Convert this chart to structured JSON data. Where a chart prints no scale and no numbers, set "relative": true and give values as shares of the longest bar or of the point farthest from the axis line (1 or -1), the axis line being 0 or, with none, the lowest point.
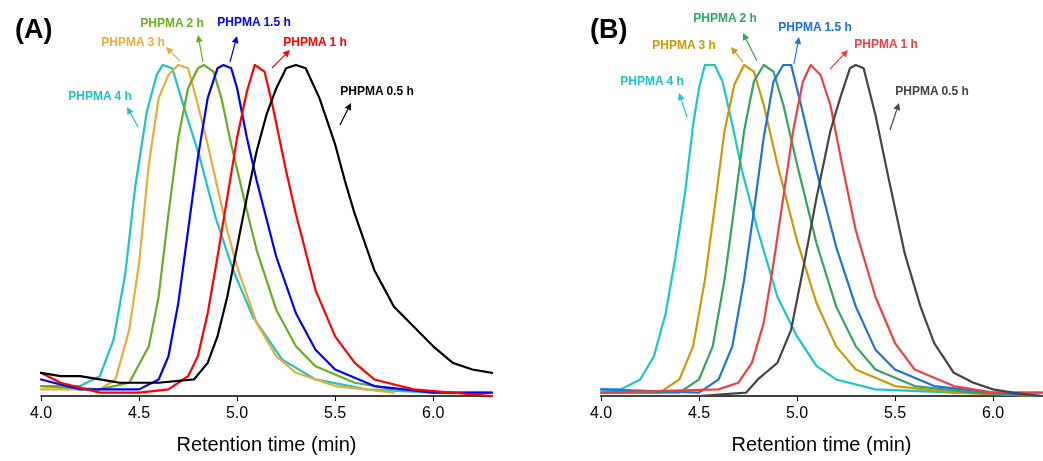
{
  "chart_data": [
    {
      "type": "line",
      "title": "(A)",
      "xlabel": "Retention time (min)",
      "relative": true,
      "marker": "none",
      "xlim": [
        4.0,
        6.3
      ],
      "xticks": [
        {
          "value": 4,
          "label": "4.0"
        },
        {
          "value": 4.5,
          "label": "4.5"
        },
        {
          "value": 5,
          "label": "5.0"
        },
        {
          "value": 5.5,
          "label": "5.5"
        },
        {
          "value": 6,
          "label": "6.0"
        }
      ],
      "series": [
        {
          "name": "PHPMA 4 h",
          "color": "#1ec4c4",
          "x": [
            4.0,
            4.1,
            4.2,
            4.3,
            4.37,
            4.43,
            4.48,
            4.54,
            4.59,
            4.62,
            4.67,
            4.72,
            4.81,
            4.89,
            4.98,
            5.08,
            5.23,
            5.4,
            5.66,
            6.0,
            6.3
          ],
          "values": [
            0.03,
            0.03,
            0.03,
            0.06,
            0.17,
            0.37,
            0.63,
            0.86,
            0.97,
            1.0,
            0.99,
            0.89,
            0.72,
            0.54,
            0.38,
            0.24,
            0.11,
            0.05,
            0.02,
            0.01,
            0.01
          ]
        },
        {
          "name": "PHPMA 3 h",
          "color": "#e8ad35",
          "x": [
            4.0,
            4.15,
            4.3,
            4.38,
            4.45,
            4.5,
            4.55,
            4.6,
            4.65,
            4.7,
            4.75,
            4.8,
            4.85,
            4.9,
            4.95,
            5.0,
            5.1,
            5.2,
            5.3,
            5.5,
            5.8
          ],
          "values": [
            0.02,
            0.02,
            0.02,
            0.05,
            0.2,
            0.4,
            0.7,
            0.9,
            0.97,
            1.0,
            0.99,
            0.88,
            0.76,
            0.63,
            0.5,
            0.39,
            0.22,
            0.12,
            0.07,
            0.03,
            0.01
          ]
        },
        {
          "name": "PHPMA 2 h",
          "color": "#6aab1f",
          "x": [
            4.0,
            4.3,
            4.45,
            4.55,
            4.6,
            4.65,
            4.7,
            4.75,
            4.8,
            4.83,
            4.88,
            4.92,
            4.97,
            5.05,
            5.1,
            5.2,
            5.3,
            5.4,
            5.6,
            5.8
          ],
          "values": [
            0.03,
            0.02,
            0.04,
            0.15,
            0.3,
            0.55,
            0.78,
            0.93,
            0.99,
            1.0,
            0.98,
            0.9,
            0.76,
            0.56,
            0.44,
            0.26,
            0.15,
            0.09,
            0.04,
            0.02
          ]
        },
        {
          "name": "PHPMA 1.5 h",
          "color": "#0000ff",
          "x": [
            4.0,
            4.2,
            4.5,
            4.6,
            4.65,
            4.7,
            4.75,
            4.8,
            4.85,
            4.9,
            4.93,
            4.97,
            5.0,
            5.05,
            5.1,
            5.2,
            5.3,
            5.4,
            5.5,
            5.7,
            6.0,
            6.3
          ],
          "values": [
            0.05,
            0.02,
            0.02,
            0.05,
            0.12,
            0.28,
            0.5,
            0.72,
            0.9,
            0.99,
            1.0,
            0.99,
            0.93,
            0.78,
            0.65,
            0.42,
            0.25,
            0.14,
            0.08,
            0.03,
            0.01,
            0.01
          ]
        },
        {
          "name": "PHPMA 1 h",
          "color": "#ff0000",
          "x": [
            4.0,
            4.1,
            4.3,
            4.5,
            4.65,
            4.75,
            4.8,
            4.85,
            4.9,
            4.95,
            5.0,
            5.05,
            5.09,
            5.14,
            5.18,
            5.25,
            5.3,
            5.4,
            5.5,
            5.6,
            5.7,
            5.9,
            6.3
          ],
          "values": [
            0.07,
            0.04,
            0.01,
            0.01,
            0.02,
            0.06,
            0.12,
            0.25,
            0.42,
            0.6,
            0.78,
            0.92,
            1.0,
            0.98,
            0.88,
            0.68,
            0.55,
            0.32,
            0.18,
            0.1,
            0.05,
            0.02,
            0.0
          ]
        },
        {
          "name": "PHPMA 0.5 h",
          "color": "#000000",
          "x": [
            4.0,
            4.1,
            4.2,
            4.3,
            4.4,
            4.5,
            4.6,
            4.78,
            4.85,
            4.9,
            4.95,
            5.0,
            5.05,
            5.1,
            5.15,
            5.2,
            5.25,
            5.3,
            5.35,
            5.42,
            5.5,
            5.55,
            5.6,
            5.7,
            5.8,
            5.9,
            6.0,
            6.1,
            6.2,
            6.3
          ],
          "values": [
            0.07,
            0.06,
            0.06,
            0.05,
            0.04,
            0.04,
            0.04,
            0.05,
            0.1,
            0.18,
            0.3,
            0.45,
            0.6,
            0.74,
            0.85,
            0.93,
            0.99,
            1.0,
            0.99,
            0.9,
            0.76,
            0.65,
            0.55,
            0.38,
            0.27,
            0.21,
            0.15,
            0.1,
            0.08,
            0.07
          ]
        }
      ]
    },
    {
      "type": "line",
      "title": "(B)",
      "xlabel": "Retention time (min)",
      "relative": true,
      "marker": "none",
      "xlim": [
        4.0,
        6.25
      ],
      "xticks": [
        {
          "value": 4,
          "label": "4.0"
        },
        {
          "value": 4.5,
          "label": "4.5"
        },
        {
          "value": 5,
          "label": "5.0"
        },
        {
          "value": 5.5,
          "label": "5.5"
        },
        {
          "value": 6,
          "label": "6.0"
        }
      ],
      "series": [
        {
          "name": "PHPMA 4 h",
          "color": "#1cc6c6",
          "x": [
            4.0,
            4.1,
            4.2,
            4.27,
            4.33,
            4.38,
            4.43,
            4.47,
            4.5,
            4.53,
            4.58,
            4.62,
            4.67,
            4.72,
            4.8,
            4.9,
            5.0,
            5.1,
            5.2,
            5.4,
            5.8,
            6.25
          ],
          "values": [
            0.02,
            0.02,
            0.05,
            0.12,
            0.25,
            0.42,
            0.62,
            0.82,
            0.93,
            1.0,
            1.0,
            0.95,
            0.82,
            0.68,
            0.5,
            0.3,
            0.18,
            0.09,
            0.05,
            0.02,
            0.01,
            0.01
          ]
        },
        {
          "name": "PHPMA 3 h",
          "color": "#c99a06",
          "x": [
            4.0,
            4.3,
            4.4,
            4.47,
            4.53,
            4.58,
            4.63,
            4.68,
            4.73,
            4.78,
            4.83,
            4.9,
            5.0,
            5.1,
            5.2,
            5.3,
            5.5,
            5.8,
            6.25
          ],
          "values": [
            0.01,
            0.01,
            0.05,
            0.15,
            0.35,
            0.57,
            0.8,
            0.94,
            1.0,
            0.98,
            0.88,
            0.7,
            0.47,
            0.28,
            0.15,
            0.08,
            0.03,
            0.01,
            0.0
          ]
        },
        {
          "name": "PHPMA 2 h",
          "color": "#35a360",
          "x": [
            4.0,
            4.4,
            4.5,
            4.57,
            4.63,
            4.68,
            4.73,
            4.78,
            4.83,
            4.88,
            4.93,
            5.0,
            5.1,
            5.2,
            5.3,
            5.4,
            5.6,
            5.9,
            6.25
          ],
          "values": [
            0.01,
            0.01,
            0.05,
            0.15,
            0.35,
            0.57,
            0.8,
            0.95,
            1.0,
            0.98,
            0.88,
            0.7,
            0.46,
            0.27,
            0.15,
            0.08,
            0.03,
            0.01,
            0.0
          ]
        },
        {
          "name": "PHPMA 1.5 h",
          "color": "#1f6fe0",
          "x": [
            4.0,
            4.5,
            4.6,
            4.67,
            4.73,
            4.78,
            4.83,
            4.88,
            4.93,
            4.97,
            5.02,
            5.1,
            5.2,
            5.3,
            5.4,
            5.5,
            5.7,
            6.0,
            6.25
          ],
          "values": [
            0.02,
            0.01,
            0.05,
            0.15,
            0.35,
            0.56,
            0.78,
            0.95,
            1.0,
            1.0,
            0.88,
            0.68,
            0.45,
            0.27,
            0.14,
            0.08,
            0.03,
            0.01,
            0.0
          ]
        },
        {
          "name": "PHPMA 1 h",
          "color": "#ee4040",
          "x": [
            4.0,
            4.6,
            4.7,
            4.77,
            4.83,
            4.88,
            4.93,
            4.98,
            5.03,
            5.07,
            5.12,
            5.17,
            5.23,
            5.3,
            5.4,
            5.5,
            5.6,
            5.8,
            6.0,
            6.25
          ],
          "values": [
            0.01,
            0.02,
            0.04,
            0.1,
            0.22,
            0.4,
            0.6,
            0.8,
            0.95,
            1.0,
            0.97,
            0.88,
            0.7,
            0.5,
            0.3,
            0.16,
            0.08,
            0.03,
            0.01,
            0.01
          ]
        },
        {
          "name": "PHPMA 0.5 h",
          "color": "#444444",
          "x": [
            4.0,
            4.5,
            4.74,
            4.8,
            4.9,
            4.97,
            5.03,
            5.1,
            5.17,
            5.22,
            5.27,
            5.3,
            5.34,
            5.4,
            5.47,
            5.55,
            5.63,
            5.7,
            5.8,
            5.9,
            6.0,
            6.1,
            6.25
          ],
          "values": [
            0.0,
            0.0,
            0.01,
            0.05,
            0.1,
            0.2,
            0.38,
            0.6,
            0.8,
            0.9,
            0.99,
            1.0,
            0.99,
            0.85,
            0.65,
            0.43,
            0.27,
            0.16,
            0.07,
            0.04,
            0.02,
            0.01,
            0.0
          ]
        }
      ]
    }
  ]
}
